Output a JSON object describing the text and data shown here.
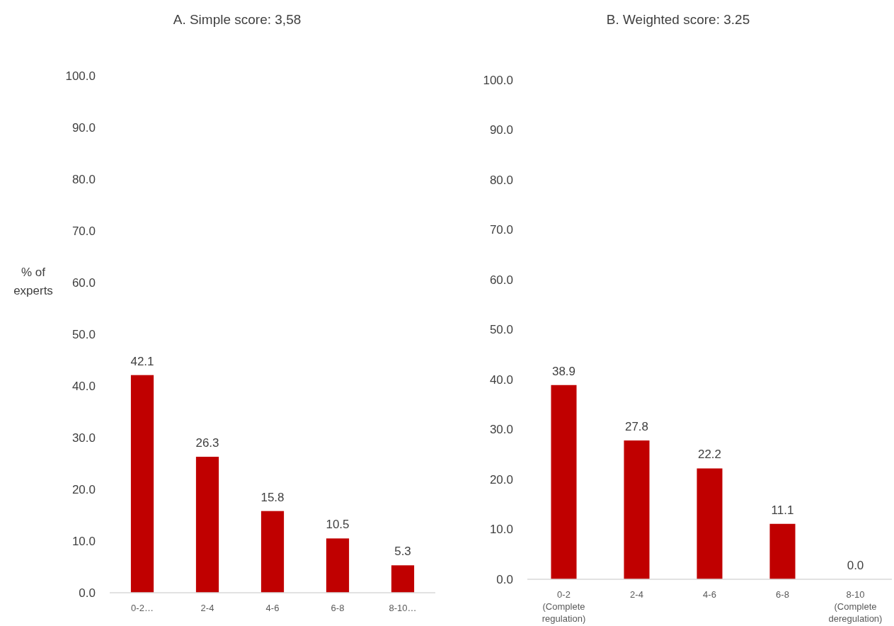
{
  "chart_data": [
    {
      "type": "bar",
      "title": "A. Simple score: 3,58",
      "ylabel": "% of experts",
      "categories": [
        "0-2…",
        "2-4",
        "4-6",
        "6-8",
        "8-10…"
      ],
      "series": [
        {
          "color": "#c00000",
          "values": [
            42.1,
            26.3,
            15.8,
            10.5,
            5.3
          ],
          "value_labels": [
            "42.1",
            "26.3",
            "15.8",
            "10.5",
            "5.3"
          ]
        }
      ],
      "ylim": [
        0,
        100
      ],
      "yticks": [
        {
          "value": 0,
          "label": "0.0"
        },
        {
          "value": 10,
          "label": "10.0"
        },
        {
          "value": 20,
          "label": "20.0"
        },
        {
          "value": 30,
          "label": "30.0"
        },
        {
          "value": 40,
          "label": "40.0"
        },
        {
          "value": 50,
          "label": "50.0"
        },
        {
          "value": 60,
          "label": "60.0"
        },
        {
          "value": 70,
          "label": "70.0"
        },
        {
          "value": 80,
          "label": "80.0"
        },
        {
          "value": 90,
          "label": "90.0"
        },
        {
          "value": 100,
          "label": "100.0"
        }
      ],
      "grid": false
    },
    {
      "type": "bar",
      "title": "B. Weighted score: 3.25",
      "categories": [
        "0-2 (Complete regulation)",
        "2-4",
        "4-6",
        "6-8",
        "8-10 (Complete deregulation)"
      ],
      "series": [
        {
          "color": "#c00000",
          "values": [
            38.9,
            27.8,
            22.2,
            11.1,
            0.0
          ],
          "value_labels": [
            "38.9",
            "27.8",
            "22.2",
            "11.1",
            "0.0"
          ]
        }
      ],
      "ylim": [
        0,
        100
      ],
      "yticks": [
        {
          "value": 0,
          "label": "0.0"
        },
        {
          "value": 10,
          "label": "10.0"
        },
        {
          "value": 20,
          "label": "20.0"
        },
        {
          "value": 30,
          "label": "30.0"
        },
        {
          "value": 40,
          "label": "40.0"
        },
        {
          "value": 50,
          "label": "50.0"
        },
        {
          "value": 60,
          "label": "60.0"
        },
        {
          "value": 70,
          "label": "70.0"
        },
        {
          "value": 80,
          "label": "80.0"
        },
        {
          "value": 90,
          "label": "90.0"
        },
        {
          "value": 100,
          "label": "100.0"
        }
      ],
      "grid": false
    }
  ]
}
